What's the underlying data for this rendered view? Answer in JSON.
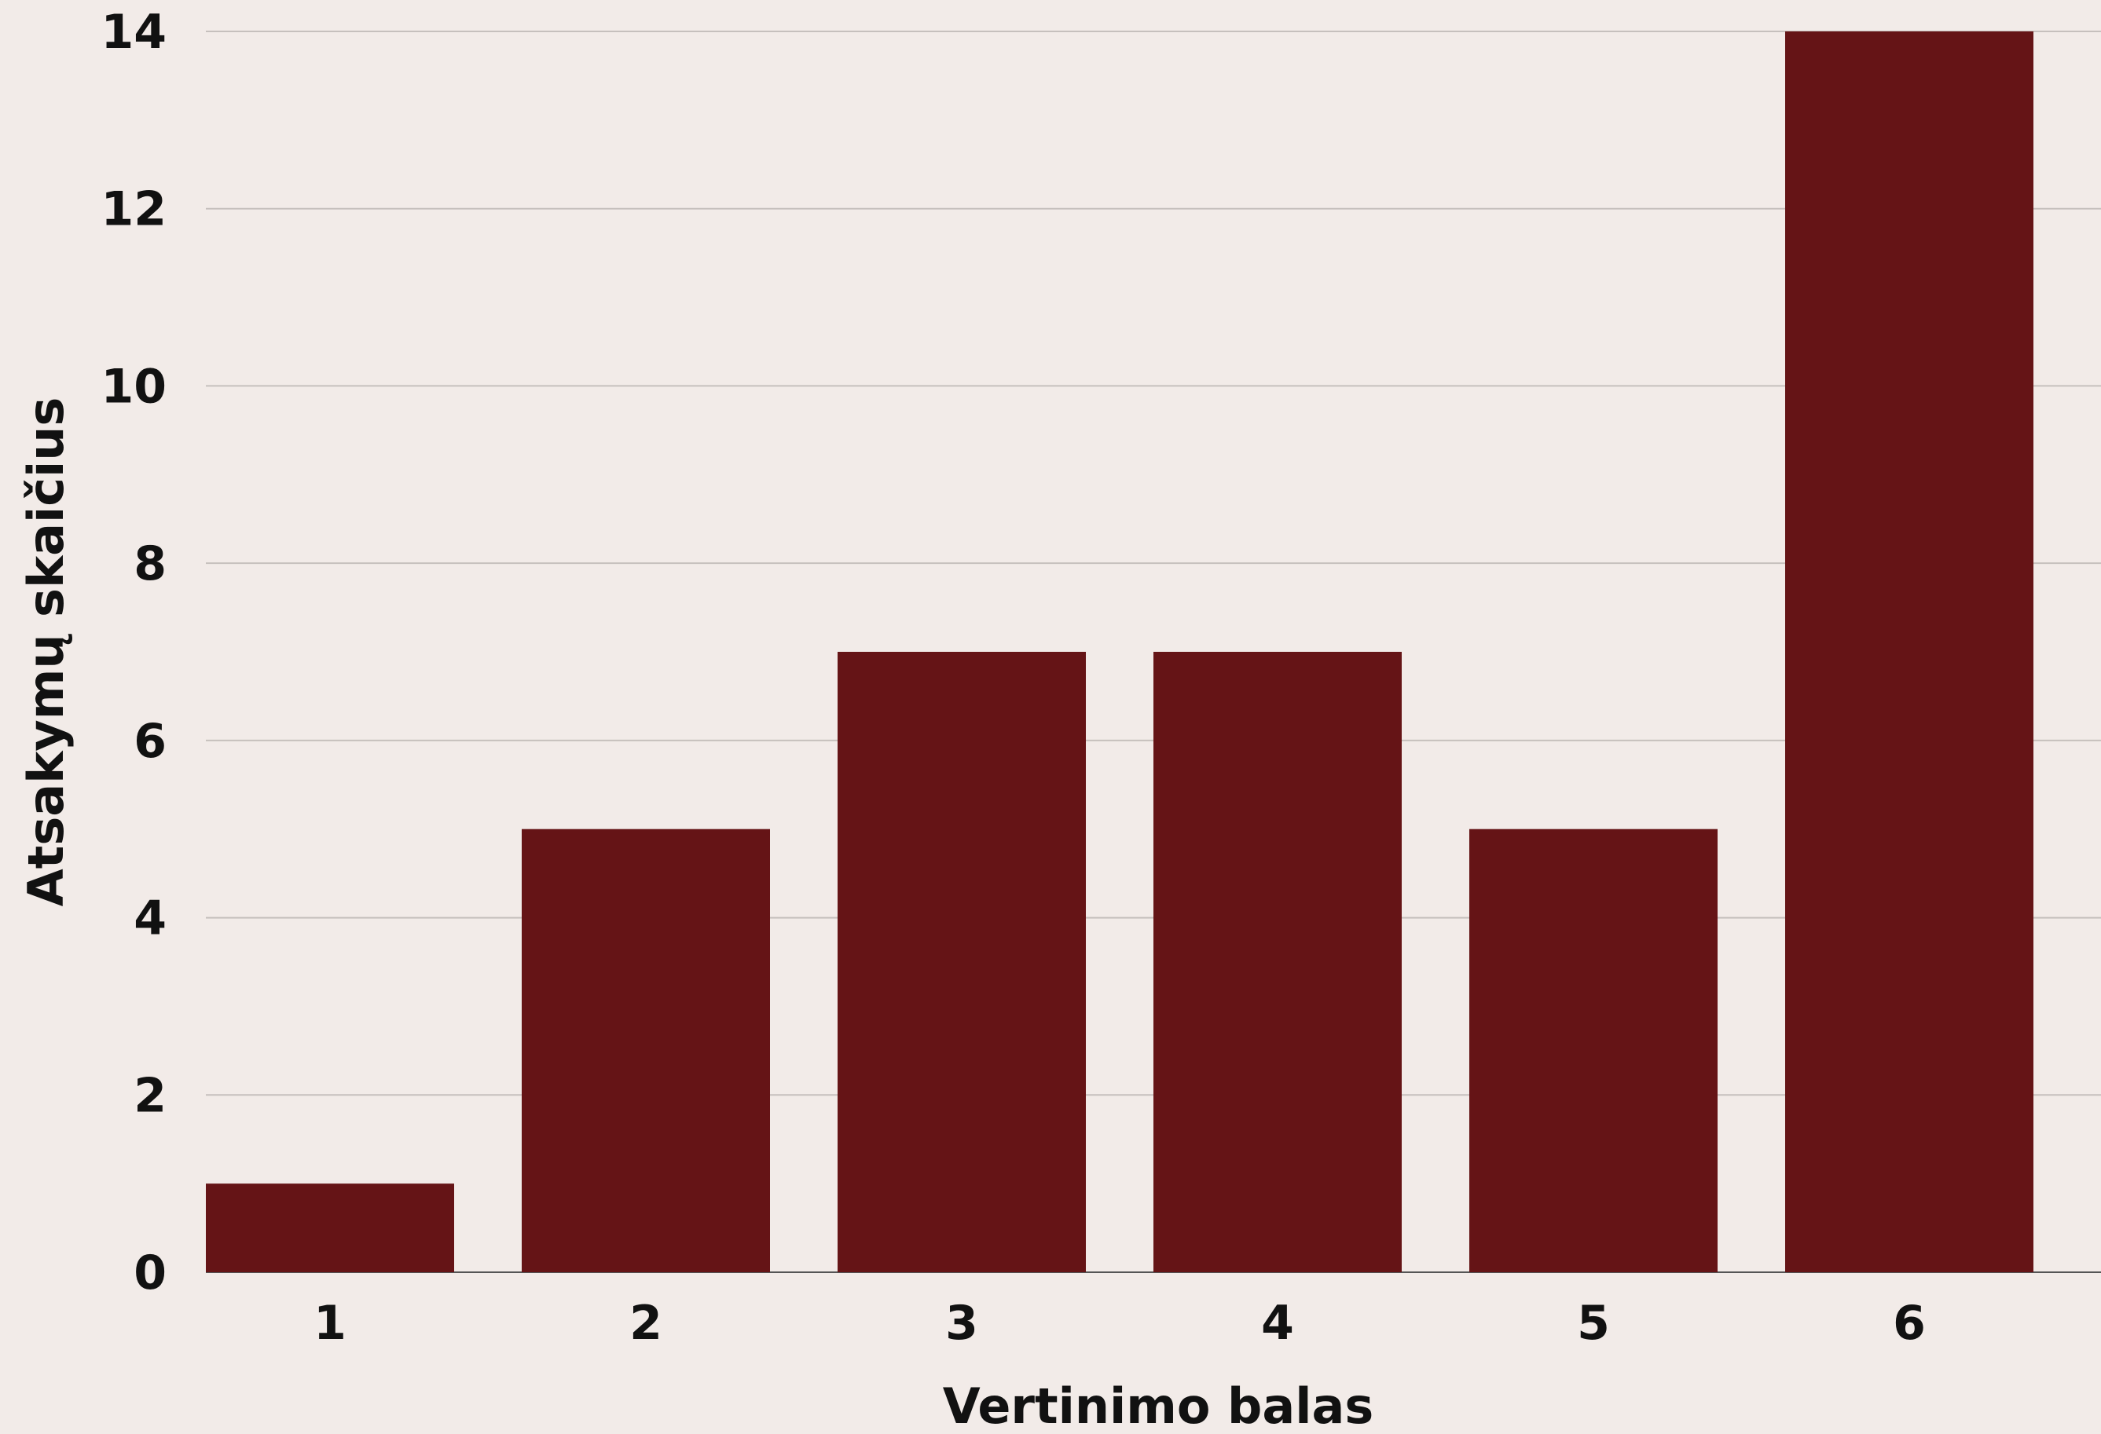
{
  "colors": {
    "background": "#f2ebe8",
    "bar": "#651416",
    "grid": "#c6c0bd",
    "text": "#111111"
  },
  "chart_data": {
    "type": "bar",
    "title": "",
    "xlabel": "Vertinimo balas",
    "ylabel": "Atsakymų skaičius",
    "categories": [
      "1",
      "2",
      "3",
      "4",
      "5",
      "6"
    ],
    "values": [
      1,
      5,
      7,
      7,
      5,
      14
    ],
    "ylim": [
      0,
      14
    ],
    "yticks": [
      "0",
      "2",
      "4",
      "6",
      "8",
      "10",
      "12",
      "14"
    ],
    "grid": true,
    "legend": "none"
  }
}
